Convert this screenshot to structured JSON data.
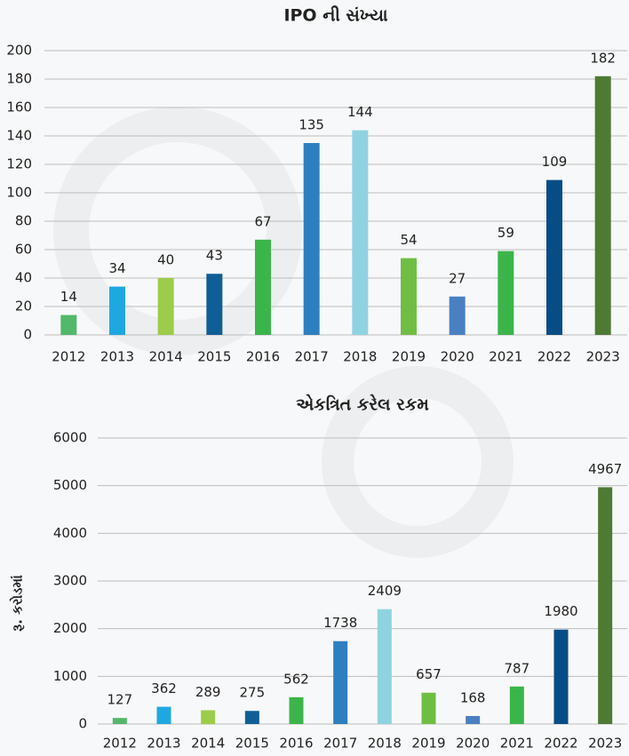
{
  "chart_data": [
    {
      "type": "bar",
      "title": "IPO ની સંખ્યા",
      "categories": [
        "2012",
        "2013",
        "2014",
        "2015",
        "2016",
        "2017",
        "2018",
        "2019",
        "2020",
        "2021",
        "2022",
        "2023"
      ],
      "values": [
        14,
        34,
        40,
        43,
        67,
        135,
        144,
        54,
        27,
        59,
        109,
        182
      ],
      "colors": [
        "#52b86a",
        "#1fa8e0",
        "#9dcc4a",
        "#0f5f96",
        "#3bb54a",
        "#2e7fbf",
        "#8fd3e0",
        "#6fbe44",
        "#4a7fc1",
        "#3bb54a",
        "#084c86",
        "#4e7a34"
      ],
      "ylim": [
        0,
        200
      ],
      "yticks": [
        0,
        20,
        40,
        60,
        80,
        100,
        120,
        140,
        160,
        180,
        200
      ],
      "grid": true
    },
    {
      "type": "bar",
      "title": "એકત્રિત કરેલ રકમ",
      "ylabel": "રૂ. કરોડમાં",
      "categories": [
        "2012",
        "2013",
        "2014",
        "2015",
        "2016",
        "2017",
        "2018",
        "2019",
        "2020",
        "2021",
        "2022",
        "2023"
      ],
      "values": [
        127,
        362,
        289,
        275,
        562,
        1738,
        2409,
        657,
        168,
        787,
        1980,
        4967
      ],
      "colors": [
        "#52b86a",
        "#1fa8e0",
        "#9dcc4a",
        "#0f5f96",
        "#3bb54a",
        "#2e7fbf",
        "#8fd3e0",
        "#6fbe44",
        "#4a7fc1",
        "#3bb54a",
        "#084c86",
        "#4e7a34"
      ],
      "ylim": [
        0,
        6000
      ],
      "yticks": [
        0,
        1000,
        2000,
        3000,
        4000,
        5000,
        6000
      ],
      "grid": true
    }
  ]
}
